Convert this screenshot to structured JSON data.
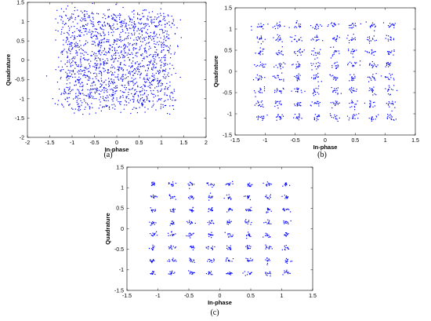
{
  "figure": {
    "captions": [
      "(a)",
      "(b)",
      "(c)"
    ]
  },
  "chart_data": [
    {
      "type": "scatter",
      "panel": "(a)",
      "title": "",
      "xlabel": "In-phase",
      "ylabel": "Quadrature",
      "xlim": [
        -2,
        2
      ],
      "ylim": [
        -2,
        1.5
      ],
      "xticks": [
        "-2",
        "-1.5",
        "-1",
        "-0.5",
        "0",
        "0.5",
        "1",
        "1.5",
        "2"
      ],
      "yticks": [
        "-2",
        "-1.5",
        "-1",
        "-0.5",
        "0",
        "0.5",
        "1",
        "1.5"
      ],
      "grid": false,
      "color": "#0000ff",
      "constellation": "64-QAM",
      "levels": [
        -1.08,
        -0.77,
        -0.46,
        -0.15,
        0.15,
        0.46,
        0.77,
        1.08
      ],
      "spread": 0.14,
      "points_per_symbol": 26
    },
    {
      "type": "scatter",
      "panel": "(b)",
      "title": "",
      "xlabel": "In-phase",
      "ylabel": "Quadrature",
      "xlim": [
        -1.5,
        1.5
      ],
      "ylim": [
        -1.5,
        1.5
      ],
      "xticks": [
        "-1.5",
        "-1",
        "-0.5",
        "0",
        "0.5",
        "1",
        "1.5"
      ],
      "yticks": [
        "-1.5",
        "-1",
        "-0.5",
        "0",
        "0.5",
        "1",
        "1.5"
      ],
      "grid": false,
      "color": "#0000ff",
      "constellation": "64-QAM",
      "levels": [
        -1.08,
        -0.77,
        -0.46,
        -0.15,
        0.15,
        0.46,
        0.77,
        1.08
      ],
      "spread": 0.045,
      "points_per_symbol": 14
    },
    {
      "type": "scatter",
      "panel": "(c)",
      "title": "",
      "xlabel": "In-phase",
      "ylabel": "Quadrature",
      "xlim": [
        -1.5,
        1.5
      ],
      "ylim": [
        -1.5,
        1.5
      ],
      "xticks": [
        "-1.5",
        "-1",
        "-0.5",
        "0",
        "0.5",
        "1",
        "1.5"
      ],
      "yticks": [
        "-1.5",
        "-1",
        "-0.5",
        "0",
        "0.5",
        "1",
        "1.5"
      ],
      "grid": false,
      "color": "#0000ff",
      "constellation": "64-QAM",
      "levels": [
        -1.08,
        -0.77,
        -0.46,
        -0.15,
        0.15,
        0.46,
        0.77,
        1.08
      ],
      "spread": 0.03,
      "points_per_symbol": 12
    }
  ]
}
